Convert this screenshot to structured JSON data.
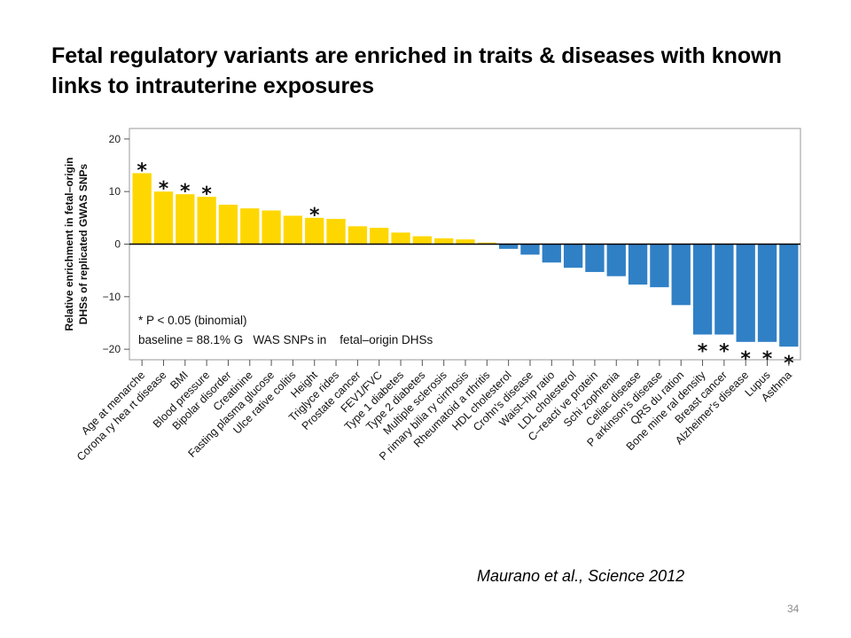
{
  "slide": {
    "title": "Fetal regulatory variants are enriched in traits & diseases with known links to intrauterine exposures",
    "citation": "Maurano et al., Science 2012",
    "page_number": "34"
  },
  "chart_data": {
    "type": "bar",
    "ylabel_line1": "Relative enrichment in fetal–origin",
    "ylabel_line2": "DHSs of replicated GWAS SNPs",
    "ylim": [
      -22,
      22
    ],
    "yticks": [
      20,
      10,
      0,
      -10,
      -20
    ],
    "ytick_labels": [
      "20",
      "10",
      "0",
      "−10",
      "−20"
    ],
    "annotation_line1": "* P < 0.05 (binomial)",
    "annotation_line2": "baseline = 88.1% G   WAS SNPs in    fetal–origin DHSs",
    "significance_marker": "*",
    "positive_color": "#FFD700",
    "negative_color": "#3080C6",
    "categories": [
      "Age at menarche",
      "Corona ry hea rt disease",
      "BMI",
      "Blood pressure",
      "Bipolar disorder",
      "Creatinine",
      "Fasting plasma glucose",
      "Ulce rative colitis",
      "Height",
      "Triglyce rides",
      "Prostate cancer",
      "FEV1/FVC",
      "Type 1 diabetes",
      "Type 2 diabetes",
      "Multiple sclerosis",
      "P rimary bilia ry cirrhosis",
      "Rheumatoid a rthritis",
      "HDL cholesterol",
      "Crohn's disease",
      "Waist–hip ratio",
      "LDL cholesterol",
      "C–reacti ve protein",
      "Schi zophrenia",
      "Celiac disease",
      "P arkinson's disease",
      "QRS du ration",
      "Bone mine ral density",
      "Breast cancer",
      "Alzheimer's disease",
      "Lupus",
      "Asthma"
    ],
    "values": [
      13.5,
      10.0,
      9.5,
      9.0,
      7.5,
      6.8,
      6.4,
      5.4,
      5.0,
      4.8,
      3.4,
      3.1,
      2.2,
      1.5,
      1.1,
      0.9,
      0.3,
      -0.9,
      -2.0,
      -3.5,
      -4.5,
      -5.3,
      -6.1,
      -7.7,
      -8.2,
      -11.6,
      -17.2,
      -17.2,
      -18.6,
      -18.6,
      -19.5
    ],
    "significant": [
      true,
      true,
      true,
      true,
      false,
      false,
      false,
      false,
      true,
      false,
      false,
      false,
      false,
      false,
      false,
      false,
      false,
      false,
      false,
      false,
      false,
      false,
      false,
      false,
      false,
      false,
      true,
      true,
      true,
      true,
      true
    ],
    "grid": false,
    "legend": "none"
  }
}
